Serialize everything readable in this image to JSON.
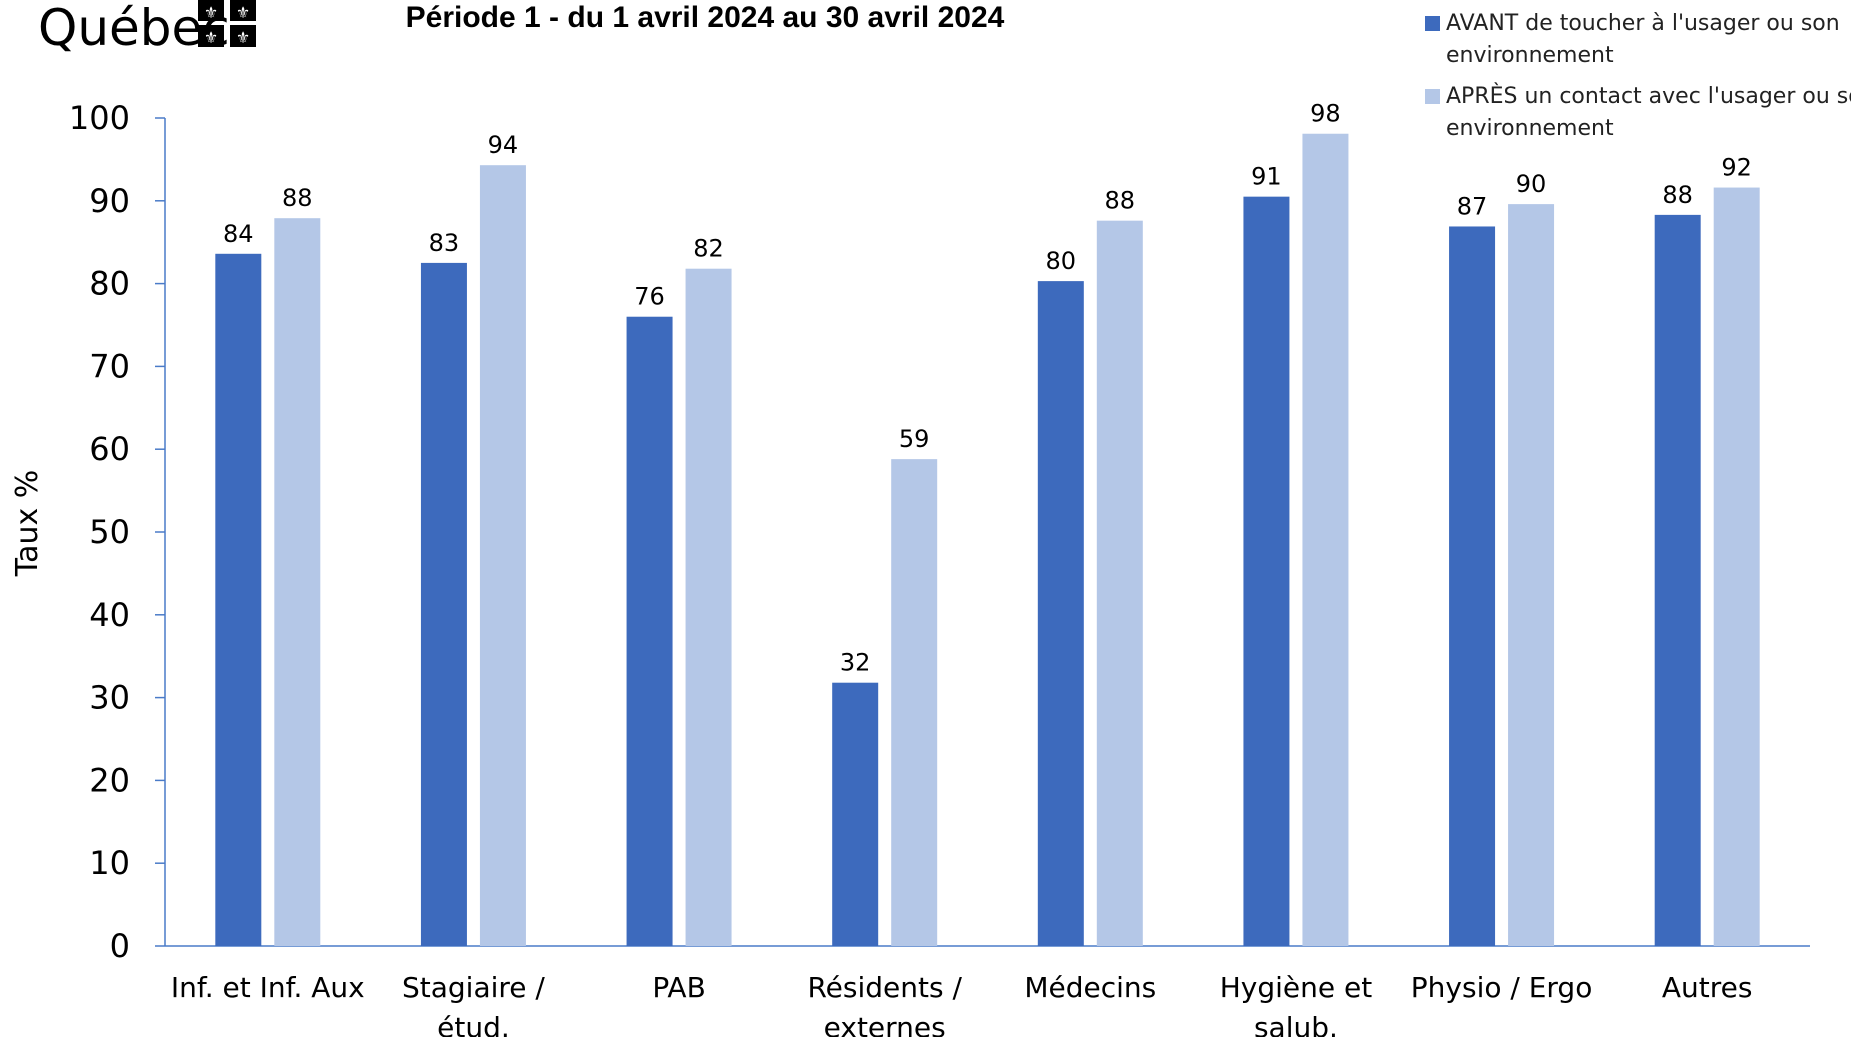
{
  "logo": {
    "text": "Québec"
  },
  "chart_data": {
    "type": "bar",
    "title": "Période 1 - du 1 avril 2024 au 30 avril 2024",
    "ylabel": "Taux %",
    "xlabel": "",
    "ylim": [
      0,
      100
    ],
    "yticks": [
      0,
      10,
      20,
      30,
      40,
      50,
      60,
      70,
      80,
      90,
      100
    ],
    "categories": [
      [
        "Inf. et Inf. Aux"
      ],
      [
        "Stagiaire /",
        "étud."
      ],
      [
        "PAB"
      ],
      [
        "Résidents /",
        "externes"
      ],
      [
        "Médecins"
      ],
      [
        "Hygiène et",
        "salub."
      ],
      [
        "Physio / Ergo"
      ],
      [
        "Autres"
      ]
    ],
    "series": [
      {
        "name": "AVANT de toucher à l'usager ou son environnement",
        "legend_lines": [
          "AVANT de toucher à l'usager ou son",
          "environnement"
        ],
        "color": "#3d6abd",
        "values": [
          83.6,
          82.5,
          76.0,
          31.8,
          80.3,
          90.5,
          86.9,
          88.3
        ],
        "labels": [
          "84",
          "83",
          "76",
          "32",
          "80",
          "91",
          "87",
          "88"
        ]
      },
      {
        "name": "APRÈS un contact avec l'usager ou son environnement",
        "legend_lines": [
          "APRÈS un contact avec l'usager ou son",
          "environnement"
        ],
        "color": "#b4c7e7",
        "values": [
          87.9,
          94.3,
          81.8,
          58.8,
          87.6,
          98.1,
          89.6,
          91.6
        ],
        "labels": [
          "88",
          "94",
          "82",
          "59",
          "88",
          "98",
          "90",
          "92"
        ]
      }
    ],
    "grid": false,
    "legend_position": "top-right"
  }
}
